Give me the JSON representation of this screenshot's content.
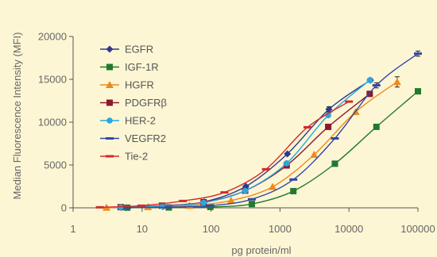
{
  "chart_data": {
    "type": "line",
    "title": "",
    "xlabel": "pg protein/ml",
    "ylabel": "Median Fluorescence Intensity (MFI)",
    "x_scale": "log",
    "xlim": [
      1,
      100000
    ],
    "ylim": [
      0,
      20000
    ],
    "x_ticks": [
      1,
      10,
      100,
      1000,
      10000,
      100000
    ],
    "x_tick_labels": [
      "1",
      "10",
      "100",
      "1000",
      "10000",
      "100000"
    ],
    "y_ticks": [
      0,
      5000,
      10000,
      15000,
      20000
    ],
    "y_tick_labels": [
      "0",
      "5000",
      "10000",
      "15000",
      "20000"
    ],
    "grid": false,
    "legend_position": "top-left",
    "series": [
      {
        "name": "EGFR",
        "color": "#2e3a8c",
        "marker": "diamond",
        "x": [
          5,
          20,
          80,
          320,
          1280,
          5120,
          20480
        ],
        "y": [
          50,
          150,
          700,
          2500,
          6300,
          11500,
          14900
        ],
        "error": [
          0,
          0,
          0,
          0,
          0,
          300,
          200
        ]
      },
      {
        "name": "IGF-1R",
        "color": "#217a2f",
        "marker": "square",
        "x": [
          6.1,
          24.4,
          97.7,
          390.6,
          1562.5,
          6250,
          25000,
          100000
        ],
        "y": [
          20,
          40,
          100,
          450,
          1950,
          5150,
          9450,
          13600
        ],
        "error": [
          0,
          0,
          0,
          0,
          0,
          0,
          0,
          0
        ]
      },
      {
        "name": "HGFR",
        "color": "#ef8a1a",
        "marker": "triangle",
        "x": [
          3.05,
          12.2,
          48.8,
          195.3,
          781.3,
          3125,
          12500,
          50000
        ],
        "y": [
          30,
          100,
          250,
          850,
          2450,
          6200,
          11200,
          14700
        ],
        "error": [
          0,
          0,
          0,
          0,
          0,
          0,
          0,
          600
        ]
      },
      {
        "name": "PDGFRβ",
        "color": "#8b1a2b",
        "marker": "square",
        "x": [
          4.9,
          19.5,
          78.1,
          312.5,
          1250,
          5000,
          20000
        ],
        "y": [
          80,
          250,
          650,
          2000,
          4950,
          9450,
          13300
        ],
        "error": [
          0,
          0,
          0,
          0,
          0,
          0,
          0
        ]
      },
      {
        "name": "HER-2",
        "color": "#2aa7e0",
        "marker": "circle",
        "x": [
          4.9,
          19.5,
          78.1,
          312.5,
          1250,
          5000,
          20000
        ],
        "y": [
          70,
          200,
          600,
          2000,
          5200,
          10800,
          14900
        ],
        "error": [
          0,
          0,
          0,
          0,
          0,
          0,
          0
        ]
      },
      {
        "name": "VEGFR2",
        "color": "#3547a6",
        "marker": "dash",
        "x": [
          6.1,
          24.4,
          97.7,
          390.6,
          1562.5,
          6250,
          25000,
          100000
        ],
        "y": [
          30,
          80,
          250,
          1000,
          3300,
          8100,
          14300,
          18000
        ],
        "error": [
          0,
          0,
          0,
          0,
          0,
          0,
          300,
          300
        ]
      },
      {
        "name": "Tie-2",
        "color": "#d42a2a",
        "marker": "dash",
        "x": [
          2.44,
          9.77,
          39.1,
          156.3,
          625,
          2500,
          10000
        ],
        "y": [
          60,
          250,
          800,
          1800,
          4500,
          9400,
          12400
        ],
        "error": [
          0,
          0,
          0,
          0,
          0,
          0,
          0
        ]
      }
    ]
  }
}
